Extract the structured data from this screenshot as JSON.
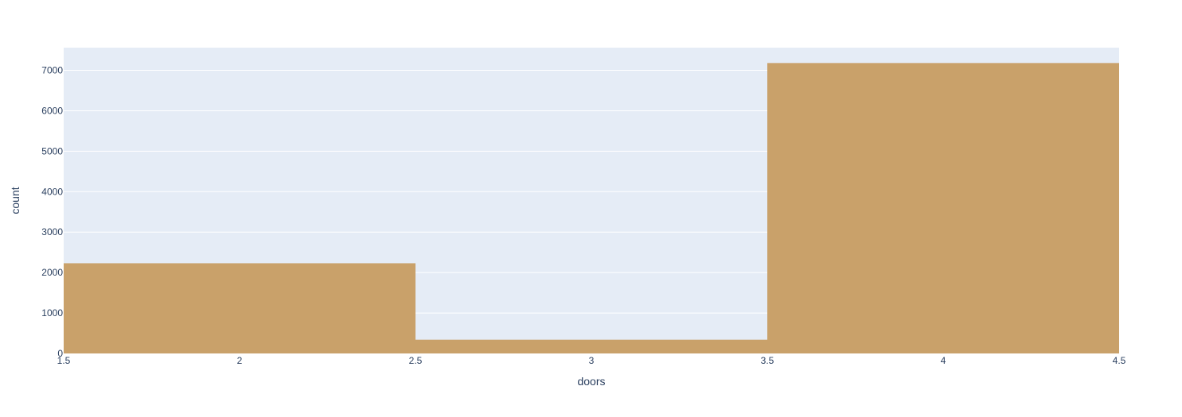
{
  "chart_data": {
    "type": "bar",
    "subtype": "histogram",
    "xlabel": "doors",
    "ylabel": "count",
    "xlim": [
      1.5,
      4.5
    ],
    "ylim": [
      0,
      7560
    ],
    "x_ticks": [
      1.5,
      2,
      2.5,
      3,
      3.5,
      4,
      4.5
    ],
    "x_tick_labels": [
      "1.5",
      "2",
      "2.5",
      "3",
      "3.5",
      "4",
      "4.5"
    ],
    "y_ticks": [
      0,
      1000,
      2000,
      3000,
      4000,
      5000,
      6000,
      7000
    ],
    "y_tick_labels": [
      "0",
      "1000",
      "2000",
      "3000",
      "4000",
      "5000",
      "6000",
      "7000"
    ],
    "bins": [
      {
        "x0": 1.5,
        "x1": 2.5,
        "value": 2230
      },
      {
        "x0": 2.5,
        "x1": 3.5,
        "value": 340
      },
      {
        "x0": 3.5,
        "x1": 4.5,
        "value": 7180
      }
    ],
    "grid": true,
    "colors": {
      "bar": "#c9a16a",
      "plot_background": "#e5ecf6",
      "paper_background": "#ffffff",
      "grid": "#ffffff",
      "text": "#2a3f5f"
    }
  }
}
